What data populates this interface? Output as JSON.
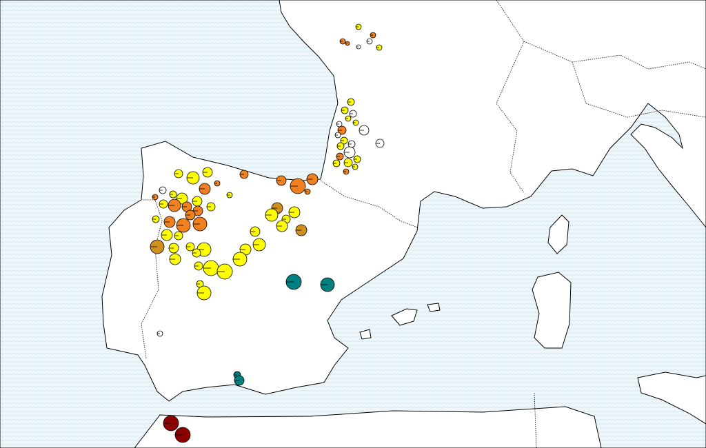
{
  "map": {
    "marker_colors": [
      "#ffff00",
      "#f08020",
      "#ffffff",
      "#008080",
      "#8b0000",
      "#d09020"
    ]
  }
}
